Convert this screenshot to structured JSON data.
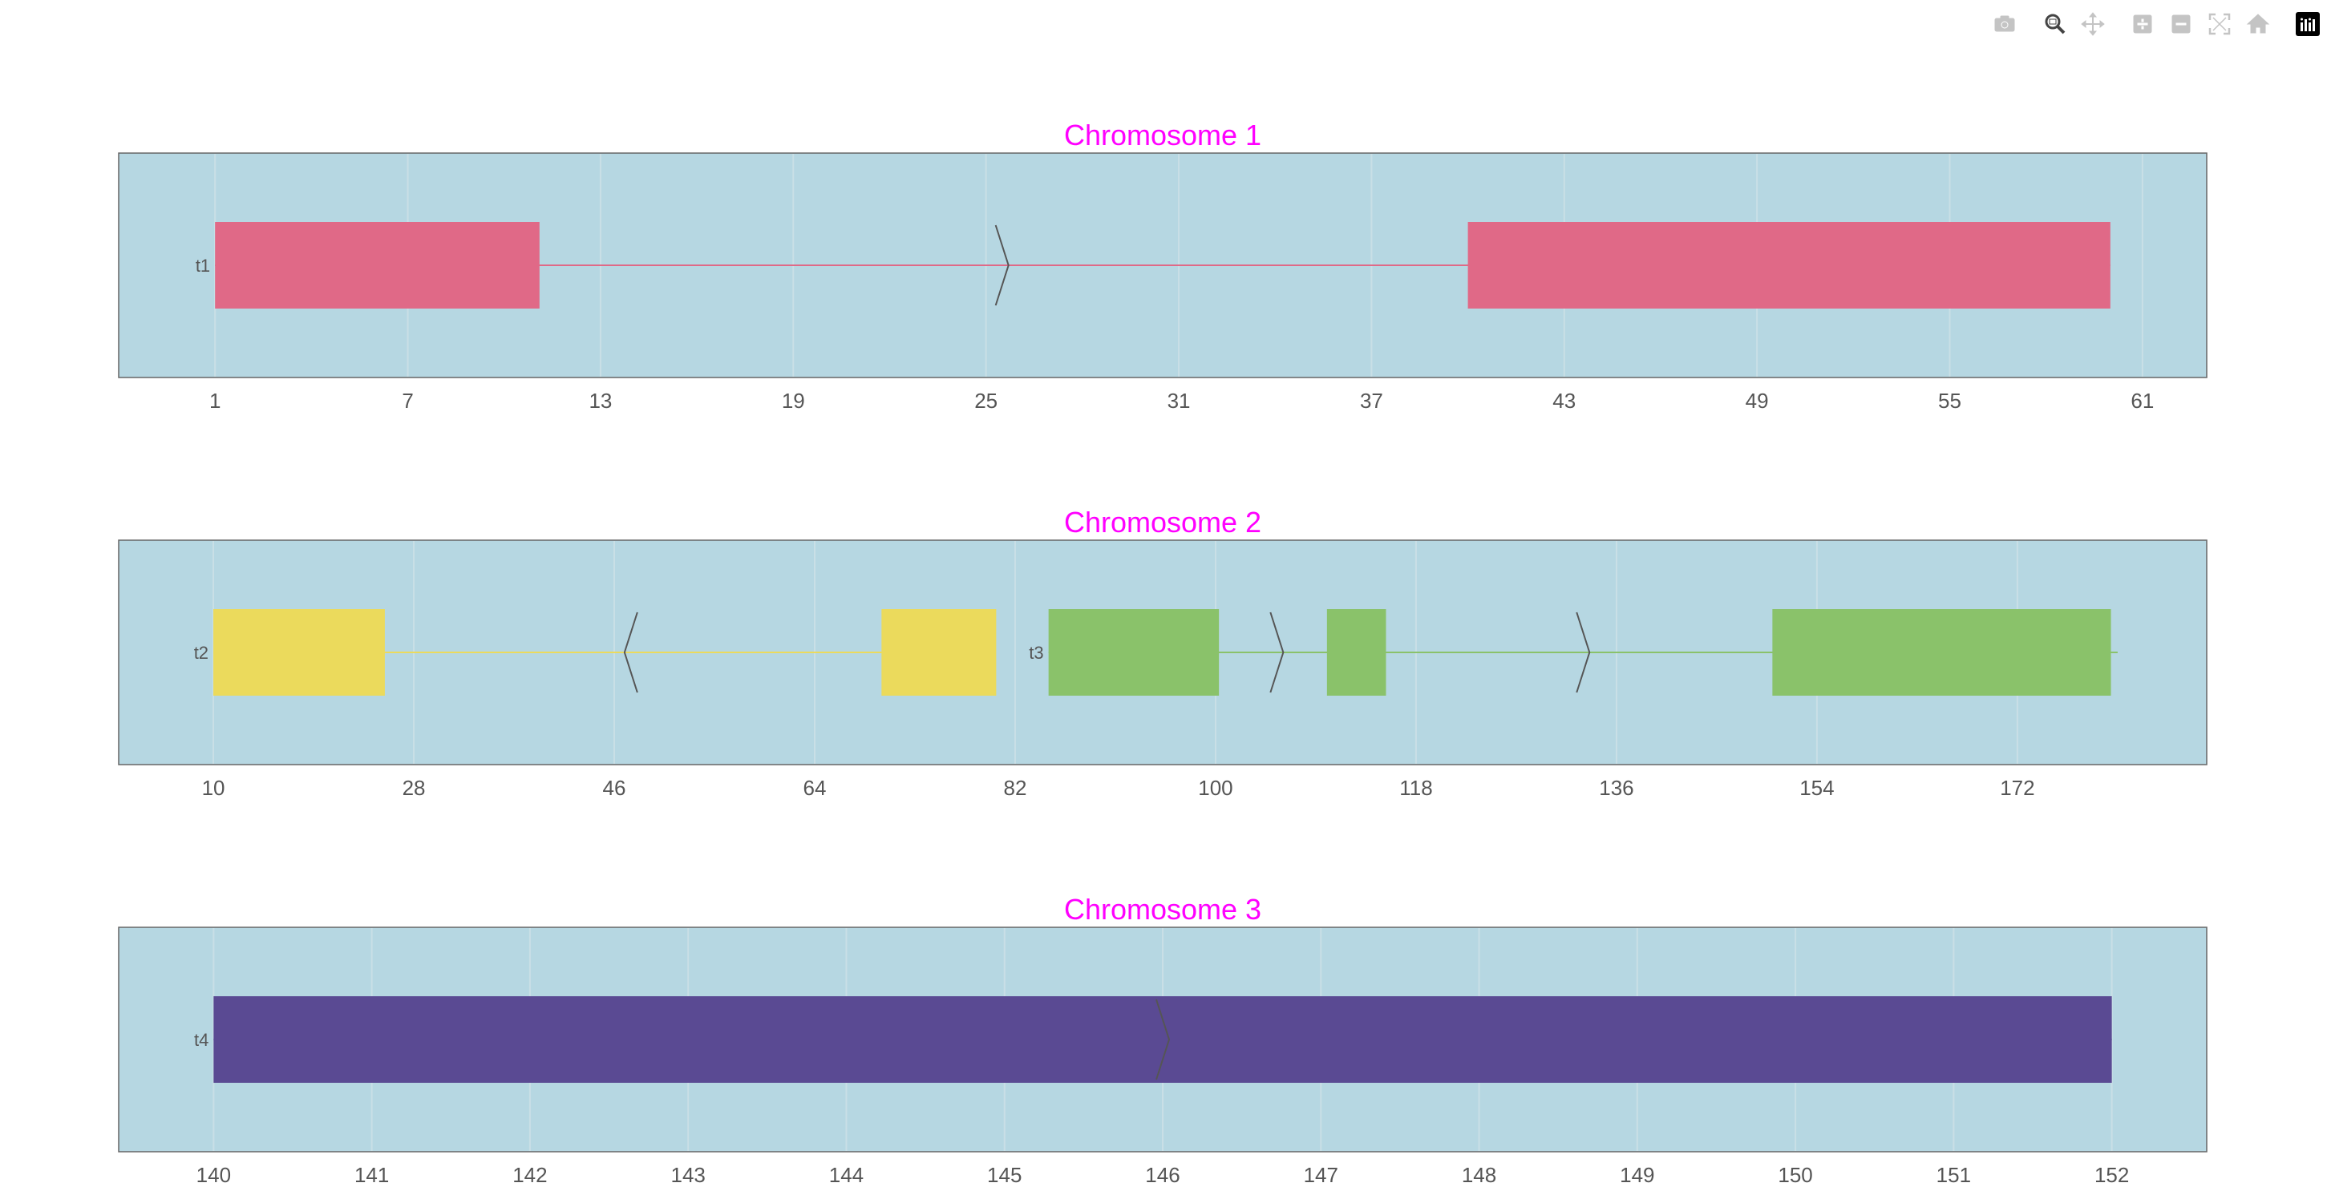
{
  "modebar": {
    "buttons": [
      {
        "icon": "camera-icon",
        "active": false
      },
      {
        "icon": "zoom-icon",
        "active": true
      },
      {
        "icon": "pan-icon",
        "active": false
      },
      {
        "icon": "zoom-in-icon",
        "active": false
      },
      {
        "icon": "zoom-out-icon",
        "active": false
      },
      {
        "icon": "autoscale-icon",
        "active": false
      },
      {
        "icon": "home-icon",
        "active": false
      },
      {
        "icon": "plotly-logo-icon",
        "active": false
      }
    ]
  },
  "colors": {
    "title": "#ff00ff",
    "plot_bg": "#b6d7e2",
    "axis_text": "#555555",
    "arrow": "#555555"
  },
  "chart_data": [
    {
      "type": "gene-track",
      "title": "Chromosome 1",
      "xlim": [
        -2,
        63
      ],
      "ticks": [
        1,
        7,
        13,
        19,
        25,
        31,
        37,
        43,
        49,
        55,
        61
      ],
      "transcripts": [
        {
          "label": "t1",
          "color": "#e06987",
          "start": 1,
          "end": 60,
          "strand": "+",
          "exons": [
            [
              1,
              11.1
            ],
            [
              40,
              60
            ]
          ],
          "arrows": [
            25.5
          ]
        }
      ]
    },
    {
      "type": "gene-track",
      "title": "Chromosome 2",
      "xlim": [
        1.5,
        189
      ],
      "ticks": [
        10,
        28,
        46,
        64,
        82,
        100,
        118,
        136,
        154,
        172
      ],
      "transcripts": [
        {
          "label": "t2",
          "color": "#ebda5c",
          "start": 10,
          "end": 80,
          "strand": "-",
          "exons": [
            [
              10,
              25.4
            ],
            [
              70,
              80.3
            ]
          ],
          "arrows": [
            47.5
          ]
        },
        {
          "label": "t3",
          "color": "#8ac26a",
          "start": 85,
          "end": 181,
          "strand": "+",
          "exons": [
            [
              85,
              100.3
            ],
            [
              110,
              115.3
            ],
            [
              150,
              180.4
            ]
          ],
          "arrows": [
            105.5,
            133
          ]
        }
      ]
    },
    {
      "type": "gene-track",
      "title": "Chromosome 3",
      "xlim": [
        139.4,
        152.6
      ],
      "ticks": [
        140,
        141,
        142,
        143,
        144,
        145,
        146,
        147,
        148,
        149,
        150,
        151,
        152
      ],
      "transcripts": [
        {
          "label": "t4",
          "color": "#5a4a93",
          "start": 140,
          "end": 152,
          "strand": "+",
          "exons": [
            [
              140,
              152
            ]
          ],
          "arrows": [
            146
          ]
        }
      ]
    }
  ]
}
